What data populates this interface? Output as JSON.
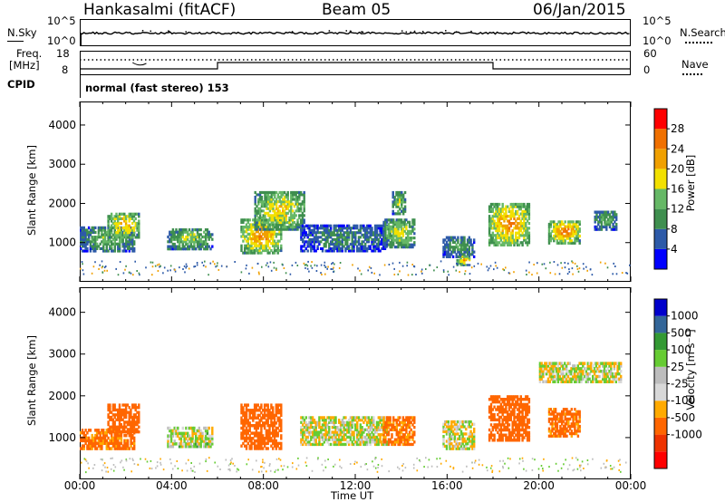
{
  "header": {
    "station": "Hankasalmi (fitACF)",
    "beam": "Beam 05",
    "date": "06/Jan/2015"
  },
  "top_panels": {
    "nsky_label": "N.Sky",
    "nsearch_label": "N.Search",
    "noise_tick_high": "10^5",
    "noise_tick_low": "10^0",
    "freq_label_1": "Freq.",
    "freq_label_2": "[MHz]",
    "freq_tick_high": "18",
    "freq_tick_low": "8",
    "nave_label": "Nave",
    "nave_tick_high": "60",
    "nave_tick_low": "0",
    "cpid_label": "CPID",
    "cpid_value": "normal (fast stereo) 153"
  },
  "colors": {
    "power": [
      "#0000ff",
      "#2d5aa8",
      "#3f8f4f",
      "#66b866",
      "#f2e000",
      "#f0a000",
      "#f07000",
      "#ff0000"
    ],
    "velocity": [
      "#ff0000",
      "#ee3300",
      "#ff6600",
      "#ffaa00",
      "#d8d8d8",
      "#bdbdbd",
      "#66cc33",
      "#339933",
      "#336699",
      "#0000cc"
    ]
  },
  "chart_data": [
    {
      "type": "heatmap",
      "title": "Power",
      "ylabel": "Slant Range [km]",
      "xlabel": "Time UT",
      "xlim": [
        "00:00",
        "24:00"
      ],
      "ylim": [
        0,
        4600
      ],
      "yticks": [
        "1000",
        "2000",
        "3000",
        "4000"
      ],
      "xticks": [
        "00:00",
        "04:00",
        "08:00",
        "12:00",
        "16:00",
        "20:00",
        "00:00"
      ],
      "colorbar": {
        "label": "Power [dB]",
        "ticks": [
          "4",
          "8",
          "12",
          "16",
          "20",
          "24",
          "28"
        ]
      },
      "echo_regions": [
        {
          "t0": 0.0,
          "t1": 2.4,
          "r0": 750,
          "r1": 1400,
          "power": 16
        },
        {
          "t0": 1.2,
          "t1": 2.6,
          "r0": 1100,
          "r1": 1750,
          "power": 24
        },
        {
          "t0": 3.8,
          "t1": 5.8,
          "r0": 800,
          "r1": 1350,
          "power": 18
        },
        {
          "t0": 7.0,
          "t1": 8.8,
          "r0": 700,
          "r1": 1600,
          "power": 26
        },
        {
          "t0": 7.6,
          "t1": 9.8,
          "r0": 1300,
          "r1": 2300,
          "power": 22
        },
        {
          "t0": 9.6,
          "t1": 13.4,
          "r0": 750,
          "r1": 1450,
          "power": 12
        },
        {
          "t0": 13.2,
          "t1": 14.6,
          "r0": 850,
          "r1": 1600,
          "power": 20
        },
        {
          "t0": 13.6,
          "t1": 14.2,
          "r0": 1700,
          "r1": 2300,
          "power": 18
        },
        {
          "t0": 15.8,
          "t1": 17.2,
          "r0": 600,
          "r1": 1150,
          "power": 14
        },
        {
          "t0": 16.4,
          "t1": 17.0,
          "r0": 400,
          "r1": 650,
          "power": 24
        },
        {
          "t0": 17.8,
          "t1": 19.6,
          "r0": 900,
          "r1": 2000,
          "power": 26
        },
        {
          "t0": 20.4,
          "t1": 21.8,
          "r0": 950,
          "r1": 1550,
          "power": 27
        },
        {
          "t0": 22.4,
          "t1": 23.4,
          "r0": 1300,
          "r1": 1800,
          "power": 16
        }
      ]
    },
    {
      "type": "heatmap",
      "title": "Velocity",
      "ylabel": "Slant Range [km]",
      "xlabel": "Time UT",
      "xlim": [
        "00:00",
        "24:00"
      ],
      "ylim": [
        0,
        4600
      ],
      "yticks": [
        "1000",
        "2000",
        "3000",
        "4000"
      ],
      "xticks": [
        "00:00",
        "04:00",
        "08:00",
        "12:00",
        "16:00",
        "20:00",
        "00:00"
      ],
      "colorbar": {
        "label": "Velocity [m s⁻¹]",
        "ticks": [
          "1000",
          "500",
          "100",
          "25",
          "-25",
          "-100",
          "-500",
          "-1000"
        ]
      },
      "echo_regions": [
        {
          "t0": 0.0,
          "t1": 2.4,
          "r0": 700,
          "r1": 1200,
          "velocity": -150
        },
        {
          "t0": 1.2,
          "t1": 2.6,
          "r0": 1100,
          "r1": 1800,
          "velocity": -200
        },
        {
          "t0": 3.8,
          "t1": 5.8,
          "r0": 750,
          "r1": 1250,
          "velocity": 20
        },
        {
          "t0": 7.0,
          "t1": 8.8,
          "r0": 700,
          "r1": 1800,
          "velocity": -300
        },
        {
          "t0": 9.6,
          "t1": 13.4,
          "r0": 800,
          "r1": 1500,
          "velocity": 0
        },
        {
          "t0": 13.2,
          "t1": 14.6,
          "r0": 800,
          "r1": 1500,
          "velocity": -150
        },
        {
          "t0": 15.8,
          "t1": 17.2,
          "r0": 700,
          "r1": 1400,
          "velocity": 0
        },
        {
          "t0": 17.8,
          "t1": 19.6,
          "r0": 900,
          "r1": 2000,
          "velocity": -250
        },
        {
          "t0": 20.4,
          "t1": 21.8,
          "r0": 1000,
          "r1": 1700,
          "velocity": -150
        },
        {
          "t0": 20.0,
          "t1": 23.6,
          "r0": 2300,
          "r1": 2800,
          "velocity": 0
        }
      ]
    }
  ]
}
